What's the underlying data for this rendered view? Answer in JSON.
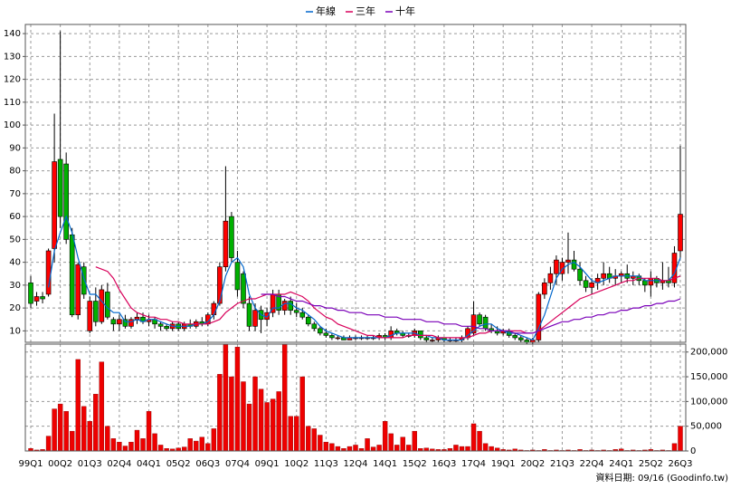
{
  "chart_data": [
    {
      "type": "candlestick",
      "legend": "top",
      "up_color": "#ff0000",
      "down_color": "#00b000",
      "grid": true,
      "ylim": [
        5,
        144
      ],
      "yticks": [
        10,
        20,
        30,
        40,
        50,
        60,
        70,
        80,
        90,
        100,
        110,
        120,
        130,
        140
      ],
      "open": [
        31,
        23,
        25,
        26,
        46,
        85,
        83,
        52,
        17,
        38,
        10,
        23,
        14,
        27,
        15,
        13,
        15,
        12,
        15,
        16,
        14,
        15,
        13,
        12,
        11,
        13,
        11,
        13,
        12,
        14,
        13,
        17,
        22,
        38,
        60,
        40,
        35,
        22,
        12,
        19,
        15,
        18,
        26,
        19,
        23,
        19,
        18,
        16,
        13,
        11,
        9,
        8,
        7,
        7,
        6,
        7,
        7,
        7,
        7,
        7,
        8,
        7,
        10,
        9,
        8,
        8,
        10,
        7,
        6,
        6,
        7,
        6,
        6,
        6,
        7,
        9,
        17,
        16,
        11,
        10,
        9,
        10,
        8,
        7,
        6,
        5,
        6,
        26,
        31,
        35,
        35,
        40,
        41,
        37,
        32,
        29,
        31,
        33,
        35,
        33,
        34,
        35,
        33,
        34,
        32,
        30,
        33,
        31,
        32,
        31,
        45
      ],
      "high": [
        34,
        27,
        27,
        46,
        105,
        141,
        88,
        55,
        40,
        40,
        25,
        29,
        30,
        31,
        16,
        17,
        17,
        16,
        18,
        18,
        17,
        16,
        14,
        13,
        14,
        14,
        14,
        15,
        15,
        16,
        18,
        23,
        40,
        82,
        62,
        45,
        36,
        25,
        22,
        21,
        20,
        28,
        28,
        24,
        25,
        22,
        20,
        17,
        14,
        12,
        11,
        9,
        8,
        8,
        8,
        8,
        8,
        8,
        8,
        9,
        9,
        12,
        11,
        10,
        9,
        11,
        10,
        8,
        7,
        8,
        7,
        7,
        7,
        8,
        12,
        23,
        18,
        17,
        13,
        12,
        11,
        11,
        9,
        8,
        7,
        7,
        27,
        33,
        38,
        43,
        42,
        53,
        45,
        40,
        34,
        33,
        35,
        40,
        38,
        37,
        36,
        39,
        36,
        35,
        33,
        36,
        34,
        40,
        38,
        47,
        91
      ],
      "low": [
        20,
        21,
        22,
        25,
        40,
        55,
        48,
        16,
        15,
        24,
        9,
        12,
        13,
        15,
        10,
        10,
        11,
        11,
        13,
        13,
        12,
        11,
        10,
        10,
        10,
        10,
        10,
        11,
        11,
        12,
        12,
        15,
        21,
        36,
        40,
        25,
        20,
        10,
        10,
        9,
        12,
        16,
        17,
        17,
        17,
        16,
        15,
        12,
        10,
        8,
        7,
        6,
        6,
        6,
        6,
        6,
        6,
        6,
        6,
        6,
        6,
        6,
        8,
        7,
        7,
        7,
        6,
        5,
        5,
        5,
        5,
        5,
        5,
        5,
        6,
        8,
        12,
        10,
        9,
        8,
        8,
        7,
        6,
        5,
        4,
        4,
        5,
        24,
        28,
        30,
        32,
        35,
        36,
        30,
        27,
        26,
        28,
        30,
        31,
        30,
        31,
        31,
        30,
        30,
        27,
        25,
        29,
        28,
        29,
        29,
        42
      ],
      "close": [
        22,
        25,
        24,
        45,
        84,
        60,
        50,
        17,
        39,
        26,
        23,
        14,
        28,
        16,
        13,
        15,
        12,
        15,
        16,
        14,
        15,
        13,
        12,
        11,
        13,
        11,
        13,
        12,
        14,
        13,
        17,
        22,
        38,
        58,
        42,
        28,
        22,
        12,
        19,
        15,
        18,
        26,
        19,
        23,
        19,
        18,
        16,
        13,
        11,
        9,
        8,
        7,
        7,
        6,
        7,
        7,
        7,
        7,
        7,
        8,
        7,
        10,
        9,
        8,
        8,
        10,
        7,
        6,
        6,
        7,
        6,
        6,
        6,
        7,
        11,
        17,
        13,
        11,
        10,
        9,
        10,
        8,
        7,
        6,
        5,
        6,
        26,
        31,
        35,
        41,
        40,
        41,
        37,
        32,
        29,
        31,
        33,
        35,
        33,
        34,
        35,
        33,
        34,
        32,
        30,
        33,
        31,
        32,
        31,
        44,
        61
      ],
      "series": [
        {
          "name": "年線",
          "color": "#0066cc",
          "values": [
            null,
            null,
            null,
            29,
            45,
            53,
            60,
            53,
            42,
            33,
            26,
            26,
            23,
            20,
            18,
            18,
            14,
            14,
            15,
            14,
            15,
            15,
            14,
            13,
            12,
            12,
            12,
            12,
            13,
            13,
            14,
            17,
            23,
            34,
            40,
            42,
            38,
            26,
            20,
            17,
            16,
            20,
            20,
            22,
            22,
            20,
            19,
            17,
            15,
            12,
            10,
            9,
            8,
            7,
            7,
            7,
            7,
            7,
            7,
            7,
            7,
            8,
            9,
            9,
            9,
            9,
            8,
            8,
            7,
            7,
            6,
            6,
            6,
            6,
            8,
            10,
            12,
            13,
            13,
            11,
            10,
            9,
            9,
            8,
            7,
            6,
            11,
            17,
            25,
            33,
            37,
            39,
            40,
            38,
            35,
            32,
            31,
            32,
            33,
            34,
            34,
            34,
            34,
            34,
            32,
            32,
            32,
            32,
            32,
            35,
            42
          ]
        },
        {
          "name": "三年",
          "color": "#d8005a",
          "values": [
            null,
            null,
            null,
            null,
            null,
            null,
            null,
            null,
            null,
            null,
            null,
            38,
            37,
            36,
            33,
            28,
            24,
            20,
            18,
            17,
            16,
            16,
            15,
            15,
            14,
            14,
            13,
            13,
            13,
            13,
            13,
            14,
            15,
            18,
            20,
            22,
            23,
            24,
            24,
            25,
            26,
            26,
            26,
            26,
            27,
            26,
            25,
            23,
            20,
            18,
            16,
            15,
            13,
            12,
            11,
            10,
            9,
            8,
            8,
            7,
            7,
            7,
            7,
            7,
            8,
            8,
            8,
            8,
            8,
            7,
            7,
            7,
            7,
            7,
            7,
            8,
            9,
            9,
            10,
            10,
            10,
            10,
            10,
            10,
            9,
            9,
            10,
            12,
            14,
            16,
            18,
            20,
            22,
            24,
            25,
            26,
            27,
            28,
            29,
            30,
            31,
            32,
            32,
            33,
            33,
            33,
            33,
            32,
            32,
            33,
            34
          ]
        },
        {
          "name": "十年",
          "color": "#7a00b8",
          "values": [
            null,
            null,
            null,
            null,
            null,
            null,
            null,
            null,
            null,
            null,
            null,
            null,
            null,
            null,
            null,
            null,
            null,
            null,
            null,
            null,
            null,
            null,
            null,
            null,
            null,
            null,
            null,
            null,
            null,
            null,
            null,
            null,
            null,
            null,
            null,
            null,
            null,
            null,
            null,
            26,
            26,
            26,
            25,
            25,
            24,
            23,
            23,
            22,
            21,
            21,
            20,
            20,
            19,
            19,
            18,
            18,
            18,
            17,
            17,
            17,
            16,
            16,
            16,
            15,
            15,
            15,
            15,
            14,
            14,
            14,
            13,
            13,
            13,
            12,
            12,
            12,
            11,
            11,
            10,
            10,
            10,
            10,
            9,
            9,
            9,
            9,
            10,
            11,
            12,
            13,
            14,
            14,
            15,
            15,
            16,
            16,
            17,
            17,
            18,
            18,
            19,
            19,
            20,
            20,
            21,
            21,
            22,
            22,
            23,
            23,
            24
          ]
        }
      ]
    },
    {
      "type": "bar",
      "color": "#ee0000",
      "grid": true,
      "footnote": "資料日期: 09/16 (Goodinfo.tw)",
      "categories": [
        "99Q1",
        null,
        null,
        null,
        null,
        "00Q2",
        null,
        null,
        null,
        null,
        "01Q3",
        null,
        null,
        null,
        null,
        "02Q4",
        null,
        null,
        null,
        null,
        "04Q1",
        null,
        null,
        null,
        null,
        "05Q2",
        null,
        null,
        null,
        null,
        "06Q3",
        null,
        null,
        null,
        null,
        "07Q4",
        null,
        null,
        null,
        null,
        "09Q1",
        null,
        null,
        null,
        null,
        "10Q2",
        null,
        null,
        null,
        null,
        "11Q3",
        null,
        null,
        null,
        null,
        "12Q4",
        null,
        null,
        null,
        null,
        "14Q1",
        null,
        null,
        null,
        null,
        "15Q2",
        null,
        null,
        null,
        null,
        "16Q3",
        null,
        null,
        null,
        null,
        "17Q4",
        null,
        null,
        null,
        null,
        "19Q1",
        null,
        null,
        null,
        null,
        "20Q2",
        null,
        null,
        null,
        null,
        "21Q3",
        null,
        null,
        null,
        null,
        "22Q4",
        null,
        null,
        null,
        null,
        "24Q1",
        null,
        null,
        null,
        null,
        "25Q2",
        null,
        null,
        null,
        null,
        "26Q3"
      ],
      "ylim": [
        0,
        216000
      ],
      "yticks": [
        0,
        {
          "value": 50000,
          "label": "50,000"
        },
        {
          "value": 100000,
          "label": "100,000"
        },
        {
          "value": 150000,
          "label": "150,000"
        },
        {
          "value": 200000,
          "label": "200,000"
        }
      ],
      "values": [
        5000,
        2000,
        3000,
        30000,
        85000,
        95000,
        80000,
        40000,
        185000,
        90000,
        60000,
        115000,
        180000,
        50000,
        25000,
        18000,
        10000,
        18000,
        42000,
        25000,
        80000,
        35000,
        12000,
        5000,
        4000,
        6000,
        8000,
        25000,
        20000,
        28000,
        15000,
        45000,
        155000,
        215000,
        150000,
        210000,
        140000,
        95000,
        150000,
        125000,
        98000,
        105000,
        120000,
        215000,
        70000,
        70000,
        150000,
        50000,
        45000,
        32000,
        18000,
        15000,
        9000,
        5000,
        9000,
        12000,
        5000,
        25000,
        8000,
        12000,
        60000,
        35000,
        12000,
        28000,
        12000,
        40000,
        5000,
        6000,
        4000,
        3000,
        3000,
        5000,
        12000,
        9000,
        9000,
        55000,
        40000,
        15000,
        9000,
        6000,
        3000,
        2000,
        4000,
        2000,
        1000,
        2000,
        1000,
        3000,
        1000,
        2000,
        1000,
        2000,
        1000,
        3000,
        1000,
        2000,
        1000,
        2000,
        1000,
        3000,
        4000,
        1000,
        2000,
        1000,
        2000,
        3000,
        1000,
        2000,
        1000,
        15000,
        50000
      ]
    }
  ]
}
